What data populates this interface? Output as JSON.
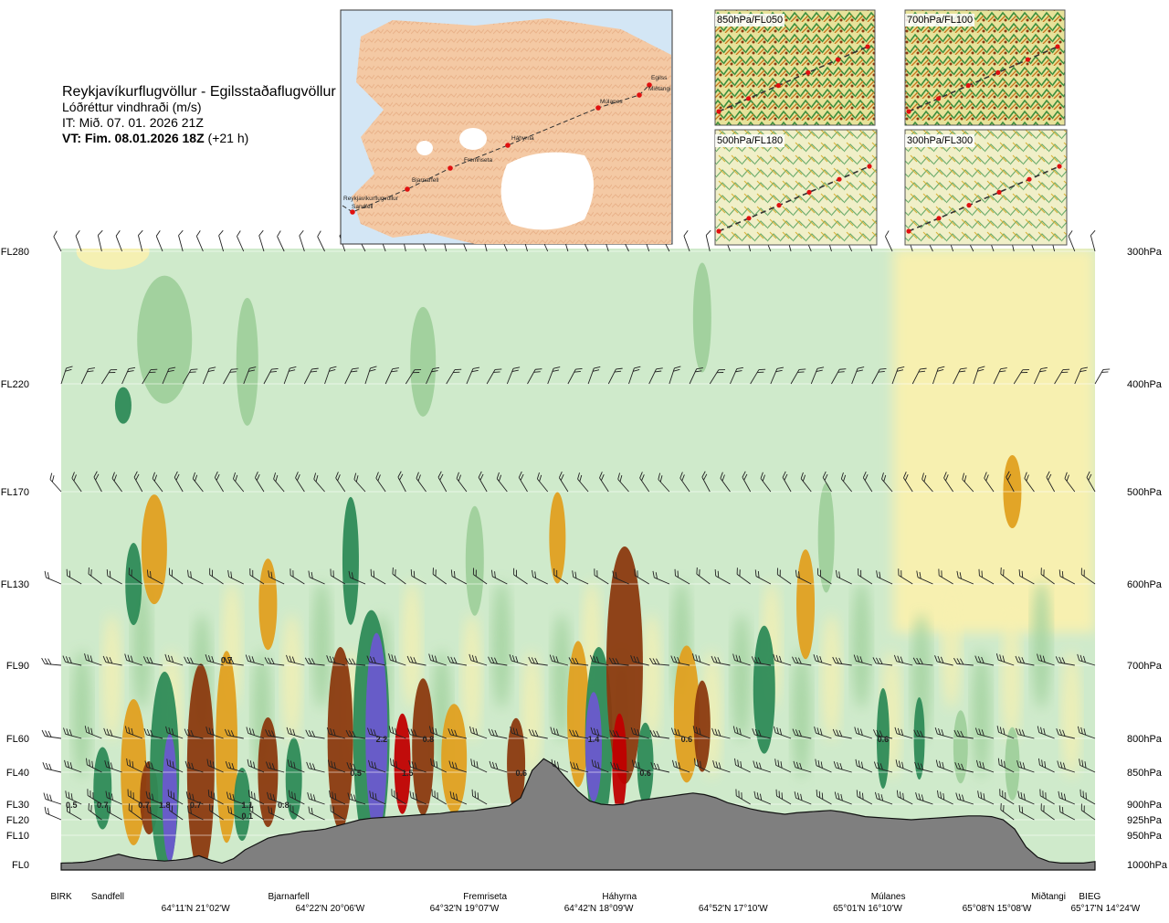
{
  "header": {
    "title": "Reykjavíkurflugvöllur - Egilsstaðaflugvöllur",
    "subtitle": "Lóðréttur vindhraði (m/s)",
    "it": "IT: Mið. 07. 01. 2026 21Z",
    "vt": "VT: Fim. 08.01.2026 18Z",
    "vt_suffix": "(+21 h)"
  },
  "map": {
    "places": [
      "Reykjavíkurflugvöllur",
      "Sandfell",
      "Bjarnarfell",
      "Fremriseta",
      "Háhyrna",
      "Múlanes",
      "Miðtangi",
      "Egilss"
    ],
    "colors": {
      "land": "#f4c9a4",
      "sea": "#d3e6f5",
      "ice": "#ffffff",
      "route": "#333333",
      "point": "#e01010"
    }
  },
  "panels": [
    {
      "label": "850hPa/FL050"
    },
    {
      "label": "700hPa/FL100"
    },
    {
      "label": "500hPa/FL180"
    },
    {
      "label": "300hPa/FL300"
    }
  ],
  "chart_data": {
    "type": "heatmap",
    "title": "Lóðréttur vindhraði (m/s)",
    "left_axis_labels": [
      "FL280",
      "FL220",
      "FL170",
      "FL130",
      "FL90",
      "FL60",
      "FL40",
      "FL30",
      "FL20",
      "FL10",
      "FL0"
    ],
    "right_axis_labels": [
      "300hPa",
      "400hPa",
      "500hPa",
      "600hPa",
      "700hPa",
      "800hPa",
      "850hPa",
      "900hPa",
      "925hPa",
      "950hPa",
      "1000hPa"
    ],
    "bottom_place_labels": [
      "BIRK",
      "Sandfell",
      "Bjarnarfell",
      "Fremriseta",
      "Háhyrna",
      "Múlanes",
      "Miðtangi",
      "BIEG"
    ],
    "bottom_coord_labels": [
      "64°11'N 21°02'W",
      "64°22'N 20°06'W",
      "64°32'N 19°07'W",
      "64°42'N 18°09'W",
      "64°52'N 17°10'W",
      "65°01'N 16°10'W",
      "65°08'N 15°08'W",
      "65°17'N 14°24'W"
    ],
    "value_annotations": [
      {
        "text": "0.5",
        "x": 0.01,
        "fl": 30
      },
      {
        "text": "0.7",
        "x": 0.04,
        "fl": 30
      },
      {
        "text": "0.7",
        "x": 0.08,
        "fl": 30
      },
      {
        "text": "1.8",
        "x": 0.1,
        "fl": 30
      },
      {
        "text": "0.7",
        "x": 0.13,
        "fl": 30
      },
      {
        "text": "0.7",
        "x": 0.16,
        "fl": 93
      },
      {
        "text": "0.1",
        "x": 0.18,
        "fl": 23
      },
      {
        "text": "1.1",
        "x": 0.18,
        "fl": 30
      },
      {
        "text": "0.8",
        "x": 0.215,
        "fl": 30
      },
      {
        "text": "0.5",
        "x": 0.285,
        "fl": 40
      },
      {
        "text": "2.2",
        "x": 0.31,
        "fl": 60
      },
      {
        "text": "0.8",
        "x": 0.355,
        "fl": 60
      },
      {
        "text": "1.5",
        "x": 0.335,
        "fl": 40
      },
      {
        "text": "0.6",
        "x": 0.445,
        "fl": 40
      },
      {
        "text": "1.4",
        "x": 0.515,
        "fl": 60
      },
      {
        "text": "0.6",
        "x": 0.565,
        "fl": 40
      },
      {
        "text": "0.6",
        "x": 0.605,
        "fl": 60
      },
      {
        "text": "0.6",
        "x": 0.795,
        "fl": 60
      }
    ],
    "terrain_fl": [
      0.5,
      0.6,
      0.8,
      1.5,
      2.5,
      3.5,
      2.5,
      1.8,
      1.5,
      1.2,
      1.5,
      2.0,
      3.0,
      1.5,
      0.5,
      2.0,
      5.0,
      7.0,
      9.0,
      10.0,
      11.0,
      12.5,
      13.0,
      14.0,
      16.0,
      18.0,
      20.0,
      21.0,
      21.5,
      22.0,
      22.5,
      23.0,
      23.5,
      24.0,
      25.0,
      25.5,
      26.0,
      27.0,
      28.0,
      29.0,
      32.0,
      41.0,
      48.0,
      44.0,
      38.0,
      34.0,
      31.0,
      30.0,
      29.5,
      30.0,
      31.0,
      31.5,
      32.0,
      32.5,
      33.0,
      33.5,
      33.0,
      32.0,
      30.5,
      29.0,
      27.0,
      25.5,
      24.5,
      23.5,
      24.5,
      25.0,
      25.5,
      26.0,
      25.0,
      23.5,
      22.0,
      21.5,
      21.0,
      20.5,
      20.0,
      20.5,
      21.0,
      21.5,
      22.0,
      22.5,
      22.5,
      22.0,
      20.0,
      14.0,
      6.0,
      2.5,
      1.0,
      0.5,
      0.5,
      0.5,
      1.0
    ],
    "colors": {
      "terrain": "#7f7f7f",
      "strong_up": "#6a5acd",
      "up": "#2e8b57",
      "weak_up": "#cfeacb",
      "weak_down": "#f7f0b0",
      "down": "#e0a020",
      "strong_down": "#8b3a0f",
      "extreme_down": "#c00000"
    }
  }
}
